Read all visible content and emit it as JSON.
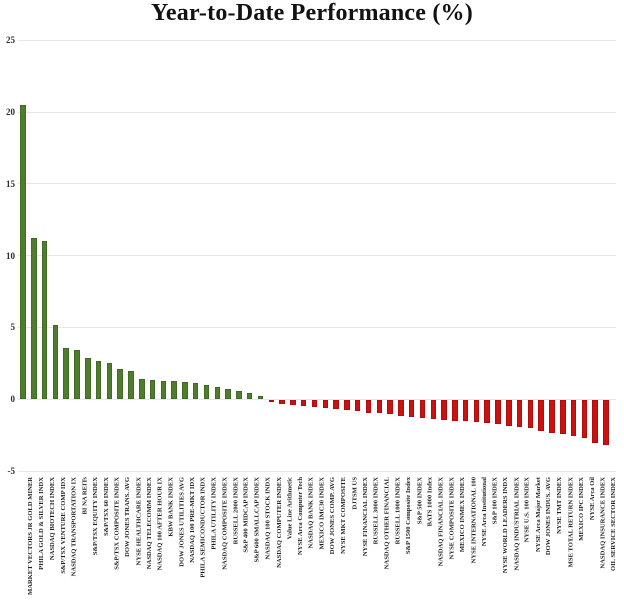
{
  "page": {
    "title": "Year-to-Date Performance (%)"
  },
  "chart_data": {
    "type": "bar",
    "title": "Year-to-Date Performance (%)",
    "xlabel": "",
    "ylabel": "",
    "ylim": [
      -5,
      25
    ],
    "yticks": [
      25,
      20,
      15,
      10,
      5,
      0,
      -5
    ],
    "grid": true,
    "legend": "none",
    "bar_colors": {
      "positive": "#4e7d2c",
      "negative": "#cc1111"
    },
    "categories": [
      "MARKET VECTORS JR GOLD MINER",
      "PHILA GOLD & SILVER INDX",
      "NASDAQ BIOTECH INDEX",
      "S&P/TSX VENTURE COMP IDX",
      "NASDAQ TRANSPORTATION IX",
      "BI NA REITs",
      "S&P/TSX EQUITY INDEX",
      "S&P/TSX 60 INDEX",
      "S&P/TSX COMPOSITE INDEX",
      "DOW JONES TRANS. AVG",
      "NYSE HEALTHCARE INDEX",
      "NASDAQ TELECOMM INDEX",
      "NASDAQ 100 AFTER HOUR IX",
      "KBW BANK INDEX",
      "DOW JONES UTILITIES AVG",
      "NASDAQ 100 PRE-MKT IDX",
      "PHILA SEMICONDUCTOR INDX",
      "PHILA UTILITY INDEX",
      "NASDAQ COMPOSITE INDEX",
      "RUSSELL 2000 INDEX",
      "S&P 400 MIDCAP INDEX",
      "S&P 600 SMALLCAP INDEX",
      "NASDAQ 100 STOCK INDX",
      "NASDAQ COMPUTER INDEX",
      "Value Line Arithmetic",
      "NYSE Arca Computer Tech",
      "NASDAQ BANK INDEX",
      "MEXICO IMC30 INDEX",
      "DOW JONES COMP. AVG",
      "NYSE MKT COMPOSITE",
      "DJTSM US",
      "NYSE FINANCIAL INDEX",
      "RUSSELL 3000 INDEX",
      "NASDAQ OTHER FINANCIAL",
      "RUSSELL 1000 INDEX",
      "S&P 1500 Composite Index",
      "S&P 500 INDEX",
      "BATS 1000 Index",
      "NASDAQ FINANCIAL INDEX",
      "NYSE COMPOSITE INDEX",
      "MEXICO INMEX INDEX",
      "NYSE INTERNATIONAL 100",
      "NYSE Arca Institutional",
      "S&P 100 INDEX",
      "NYSE WORLD LEADERS INDX",
      "NASDAQ INDUSTRIAL INDEX",
      "NYSE U.S. 100 INDEX",
      "NYSE Arca Major Market",
      "DOW JONES INDUS. AVG",
      "NYSE TMT INDEX",
      "MSE TOTAL RETURN INDEX",
      "MEXICO IPC INDEX",
      "NYSE Arca Oil",
      "NASDAQ INSURANCE INDEX",
      "OIL SERVICE SECTOR INDEX"
    ],
    "values": [
      20.5,
      11.2,
      11.0,
      5.2,
      3.6,
      3.45,
      2.9,
      2.65,
      2.55,
      2.1,
      1.95,
      1.4,
      1.35,
      1.3,
      1.25,
      1.2,
      1.15,
      1.0,
      0.85,
      0.7,
      0.55,
      0.4,
      0.25,
      -0.15,
      -0.3,
      -0.4,
      -0.45,
      -0.5,
      -0.6,
      -0.65,
      -0.75,
      -0.8,
      -0.9,
      -0.95,
      -1.0,
      -1.15,
      -1.2,
      -1.3,
      -1.35,
      -1.4,
      -1.45,
      -1.5,
      -1.55,
      -1.6,
      -1.7,
      -1.8,
      -1.9,
      -2.0,
      -2.2,
      -2.3,
      -2.4,
      -2.5,
      -2.65,
      -3.0,
      -3.15
    ]
  }
}
